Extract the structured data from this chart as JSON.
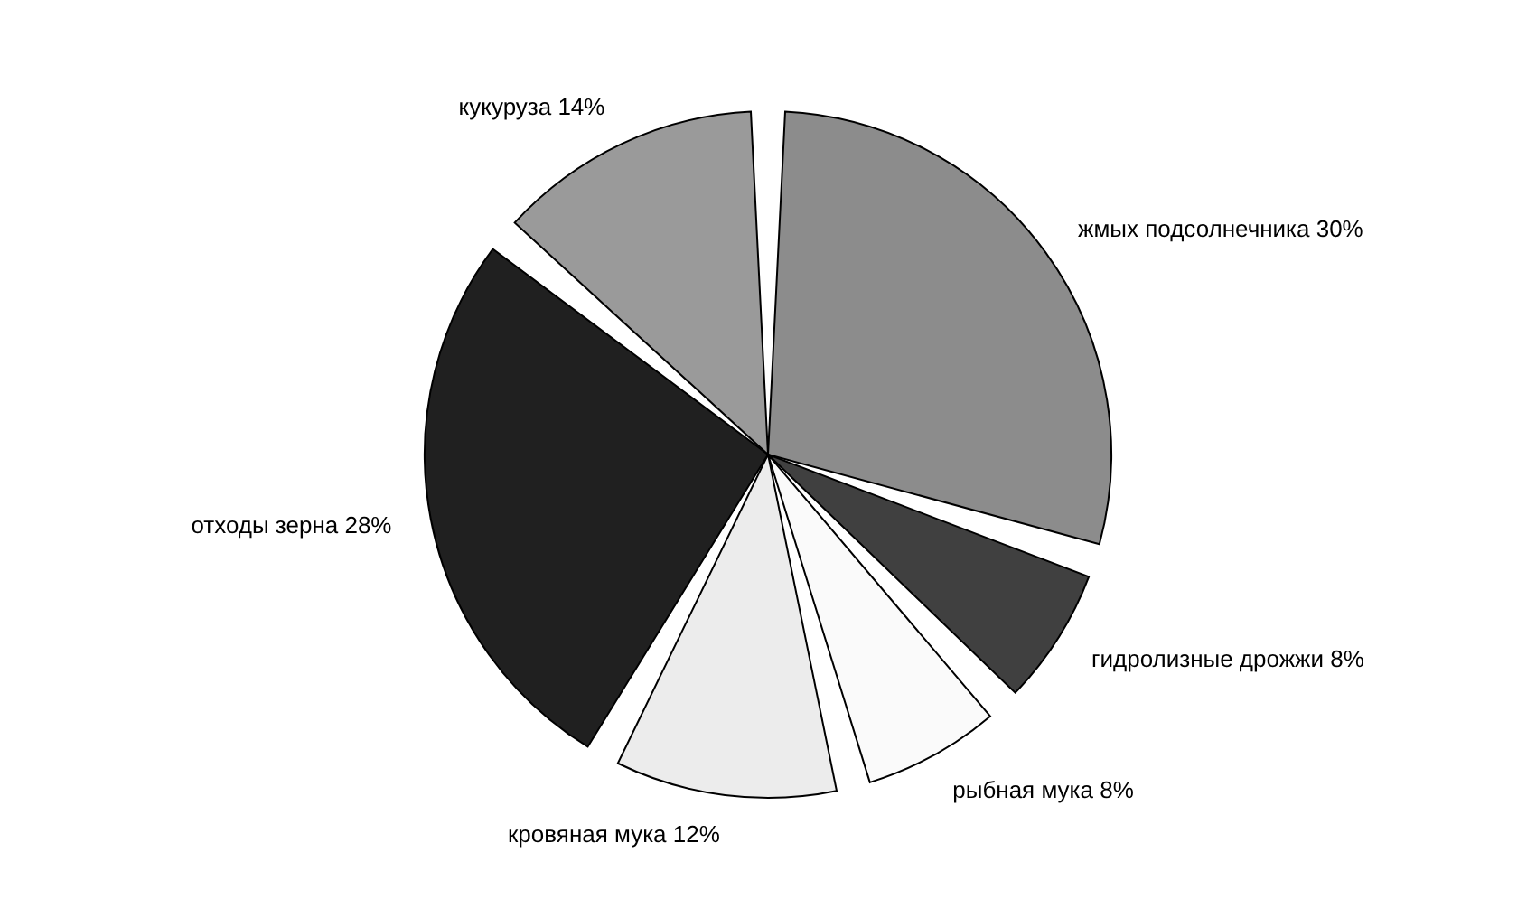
{
  "chart_data": {
    "type": "pie",
    "categories": [
      "жмых подсолнечника",
      "гидролизные дрожжи",
      "рыбная мука",
      "кровяная мука",
      "отходы зерна",
      "кукуруза"
    ],
    "values": [
      30,
      8,
      8,
      12,
      28,
      14
    ],
    "value_labels": [
      "30%",
      "8%",
      "8%",
      "12%",
      "28%",
      "14%"
    ],
    "colors": [
      "#8c8c8c",
      "#404040",
      "#fafafa",
      "#ececec",
      "#202020",
      "#9a9a9a"
    ],
    "legend": false
  }
}
